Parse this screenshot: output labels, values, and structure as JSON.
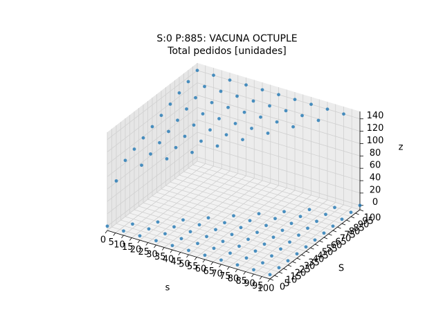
{
  "chart_data": {
    "type": "scatter3d",
    "title": "S:0 P:885: VACUNA OCTUPLE",
    "subtitle": "Total pedidos [unidades]",
    "x_label": "s",
    "y_label": "S",
    "z_label": "z",
    "color": "#1f77b4",
    "grid": true,
    "xlim": [
      0,
      100
    ],
    "ylim": [
      0,
      100
    ],
    "zlim": [
      -7,
      152
    ],
    "xticks": [
      0,
      5,
      10,
      15,
      20,
      25,
      30,
      35,
      40,
      45,
      50,
      55,
      60,
      65,
      70,
      75,
      80,
      85,
      90,
      95,
      100
    ],
    "yticks": [
      0,
      5,
      10,
      15,
      20,
      25,
      30,
      35,
      40,
      45,
      50,
      55,
      60,
      65,
      70,
      75,
      80,
      85,
      90,
      95,
      100
    ],
    "zticks": [
      0,
      20,
      40,
      60,
      80,
      100,
      120,
      140
    ],
    "x": [
      0,
      10,
      10,
      20,
      20,
      20,
      30,
      30,
      30,
      30,
      40,
      40,
      40,
      40,
      40,
      50,
      50,
      50,
      50,
      50,
      50,
      60,
      60,
      60,
      60,
      60,
      60,
      60,
      70,
      70,
      70,
      70,
      70,
      70,
      70,
      70,
      80,
      80,
      80,
      80,
      80,
      80,
      80,
      80,
      80,
      90,
      90,
      90,
      90,
      90,
      90,
      90,
      90,
      90,
      90,
      100,
      100,
      100,
      100,
      100,
      100,
      100,
      100,
      100,
      100,
      100,
      0,
      0,
      0,
      0,
      0,
      0,
      0,
      0,
      0,
      0,
      10,
      10,
      10,
      10,
      10,
      10,
      10,
      10,
      10,
      20,
      20,
      20,
      20,
      20,
      20,
      20,
      20,
      30,
      30,
      30,
      30,
      30,
      30,
      30,
      40,
      40,
      40,
      40,
      40,
      40,
      50,
      50,
      50,
      50,
      50,
      60,
      60,
      60,
      60,
      70,
      70,
      70,
      80,
      80,
      90
    ],
    "y": [
      0,
      0,
      10,
      0,
      10,
      20,
      0,
      10,
      20,
      30,
      0,
      10,
      20,
      30,
      40,
      0,
      10,
      20,
      30,
      40,
      50,
      0,
      10,
      20,
      30,
      40,
      50,
      60,
      0,
      10,
      20,
      30,
      40,
      50,
      60,
      70,
      0,
      10,
      20,
      30,
      40,
      50,
      60,
      70,
      80,
      0,
      10,
      20,
      30,
      40,
      50,
      60,
      70,
      80,
      90,
      0,
      10,
      20,
      30,
      40,
      50,
      60,
      70,
      80,
      90,
      100,
      10,
      20,
      30,
      40,
      50,
      60,
      70,
      80,
      90,
      100,
      20,
      30,
      40,
      50,
      60,
      70,
      80,
      90,
      100,
      30,
      40,
      50,
      60,
      70,
      80,
      90,
      100,
      40,
      50,
      60,
      70,
      80,
      90,
      100,
      50,
      60,
      70,
      80,
      90,
      100,
      60,
      70,
      80,
      90,
      100,
      70,
      80,
      90,
      100,
      80,
      90,
      100,
      90,
      100,
      100
    ],
    "z": [
      0,
      0,
      0,
      0,
      0,
      0,
      0,
      0,
      0,
      0,
      0,
      0,
      0,
      0,
      0,
      0,
      0,
      0,
      0,
      0,
      0,
      0,
      0,
      0,
      0,
      0,
      0,
      0,
      0,
      0,
      0,
      0,
      0,
      0,
      0,
      0,
      0,
      0,
      0,
      0,
      0,
      0,
      0,
      0,
      0,
      0,
      0,
      0,
      0,
      0,
      0,
      0,
      0,
      0,
      0,
      0,
      0,
      0,
      0,
      0,
      0,
      0,
      0,
      0,
      0,
      0,
      62,
      84,
      91,
      98,
      105,
      112,
      119,
      126,
      133,
      140,
      84,
      91,
      98,
      105,
      112,
      119,
      126,
      133,
      140,
      91,
      98,
      105,
      112,
      119,
      126,
      133,
      140,
      98,
      105,
      112,
      119,
      126,
      133,
      140,
      105,
      112,
      119,
      126,
      133,
      140,
      112,
      119,
      126,
      133,
      140,
      119,
      126,
      133,
      140,
      126,
      133,
      140,
      133,
      140,
      140
    ]
  }
}
